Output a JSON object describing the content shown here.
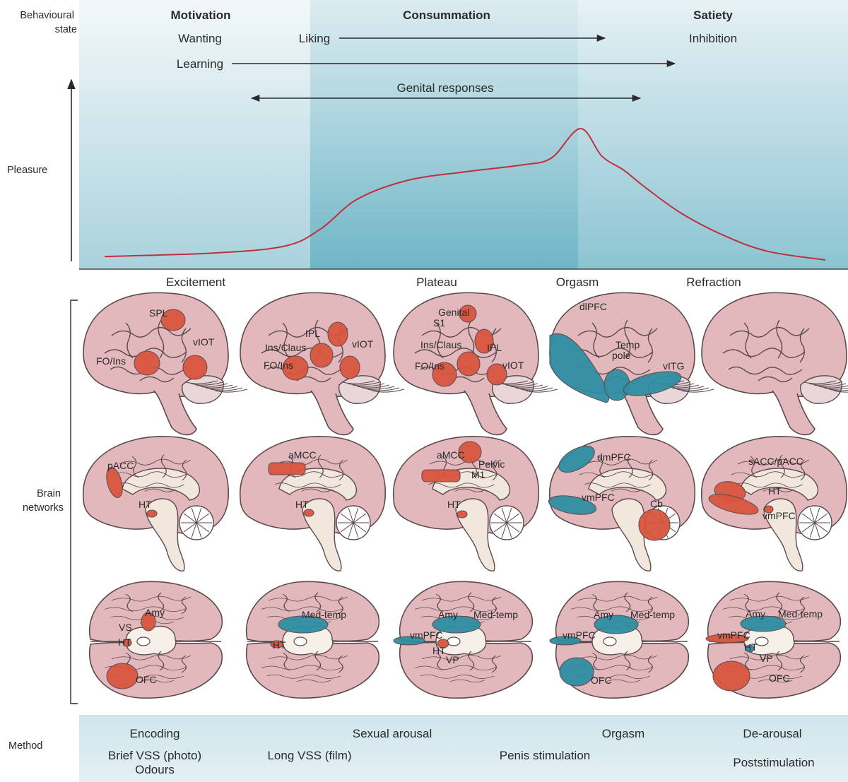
{
  "row_labels": {
    "behavioural_state": [
      "Behavioural",
      "state"
    ],
    "pleasure": "Pleasure",
    "brain_networks": [
      "Brain",
      "networks"
    ],
    "method": "Method"
  },
  "states": {
    "motivation": "Motivation",
    "consummation": "Consummation",
    "satiety": "Satiety",
    "wanting": "Wanting",
    "liking": "Liking",
    "inhibition": "Inhibition",
    "learning": "Learning",
    "genital_responses": "Genital responses"
  },
  "phases": [
    "Excitement",
    "Plateau",
    "Orgasm",
    "Refraction"
  ],
  "pleasure_curve": {
    "x": [
      0.0,
      0.15,
      0.25,
      0.3,
      0.35,
      0.42,
      0.5,
      0.58,
      0.62,
      0.66,
      0.69,
      0.72,
      0.75,
      0.8,
      0.86,
      0.92,
      1.0
    ],
    "y": [
      0.02,
      0.04,
      0.08,
      0.18,
      0.35,
      0.46,
      0.51,
      0.55,
      0.59,
      0.76,
      0.6,
      0.52,
      0.42,
      0.27,
      0.14,
      0.05,
      0.0
    ]
  },
  "colors": {
    "activation": "#d9553f",
    "deactivation": "#2e8ea3",
    "brain": "#e3b8bd",
    "curve": "#c0303c",
    "band_light": "#e7f1f5",
    "band_dark": "#7fbccc"
  },
  "brains": {
    "lateral": [
      [
        "SPL",
        "FO/Ins",
        "vIOT"
      ],
      [
        "IPL",
        "Ins/Claus",
        "FO/Ins",
        "vIOT"
      ],
      [
        "Genital",
        "S1",
        "Ins/Claus",
        "IPL",
        "FO/Ins",
        "vIOT"
      ],
      [
        "dlPFC",
        "Temp",
        "pole",
        "vITG"
      ],
      []
    ],
    "medial": [
      [
        "pACC",
        "HT"
      ],
      [
        "aMCC",
        "HT"
      ],
      [
        "aMCC",
        "Pelvic",
        "M1",
        "HT"
      ],
      [
        "dmPFC",
        "vmPFC",
        "Cb"
      ],
      [
        "sACC/pACC",
        "HT",
        "vmPFC"
      ]
    ],
    "ventral": [
      [
        "Amy",
        "VS",
        "HT",
        "OFC"
      ],
      [
        "Med-temp",
        "HT"
      ],
      [
        "Amy",
        "Med-temp",
        "vmPFC",
        "HT",
        "VP"
      ],
      [
        "Amy",
        "Med-temp",
        "vmPFC",
        "OFC"
      ],
      [
        "Amy",
        "Med-temp",
        "vmPFC",
        "HT",
        "VP",
        "OFC"
      ]
    ]
  },
  "methods": {
    "encoding": "Encoding",
    "sexual_arousal": "Sexual arousal",
    "orgasm": "Orgasm",
    "de_arousal": "De-arousal",
    "brief_vss": "Brief VSS (photo)",
    "odours": "Odours",
    "long_vss": "Long VSS (film)",
    "penis_stimulation": "Penis stimulation",
    "poststimulation": "Poststimulation"
  }
}
